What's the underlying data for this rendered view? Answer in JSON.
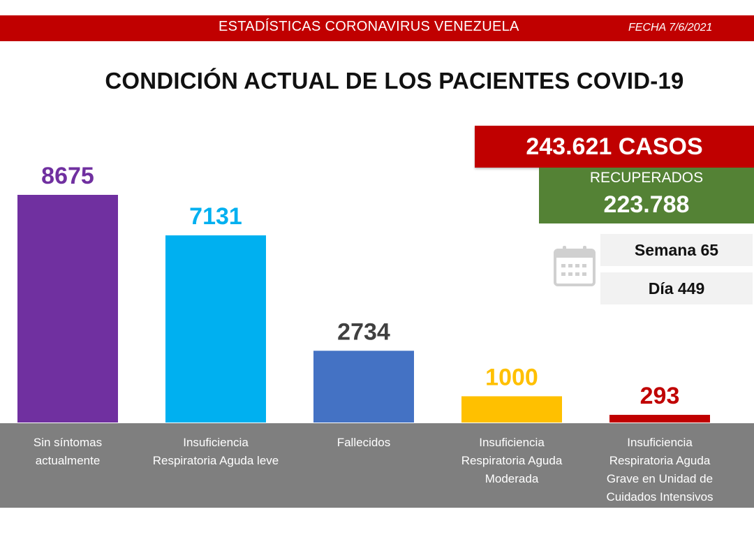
{
  "header": {
    "title": "ESTADÍSTICAS CORONAVIRUS VENEZUELA",
    "date": "FECHA 7/6/2021"
  },
  "main_title": "CONDICIÓN ACTUAL DE LOS PACIENTES COVID-19",
  "summary": {
    "cases": "243.621 CASOS",
    "recovered_label": "RECUPERADOS",
    "recovered_value": "223.788",
    "week": "Semana 65",
    "day": "Día 449",
    "calendar_icon": "calendar-icon"
  },
  "colors": {
    "header_red": "#c00000",
    "recovered_green": "#548235",
    "label_band": "#7f7f7f"
  },
  "chart_data": {
    "type": "bar",
    "categories": [
      [
        "Sin síntomas",
        "actualmente"
      ],
      [
        "Insuficiencia",
        "Respiratoria Aguda leve"
      ],
      [
        "Fallecidos"
      ],
      [
        "Insuficiencia",
        "Respiratoria Aguda",
        "Moderada"
      ],
      [
        "Insuficiencia",
        "Respiratoria Aguda",
        "Grave en Unidad de",
        "Cuidados Intensivos"
      ]
    ],
    "values": [
      8675,
      7131,
      2734,
      1000,
      293
    ],
    "value_labels": [
      "8675",
      "7131",
      "2734",
      "1000",
      "293"
    ],
    "bar_colors": [
      "#7030a0",
      "#00b0f0",
      "#4472c4",
      "#ffc000",
      "#c00000"
    ],
    "label_colors": [
      "#7030a0",
      "#00b0f0",
      "#404040",
      "#ffc000",
      "#c00000"
    ],
    "title": "CONDICIÓN ACTUAL DE LOS PACIENTES COVID-19",
    "grid": false,
    "legend": "none"
  }
}
